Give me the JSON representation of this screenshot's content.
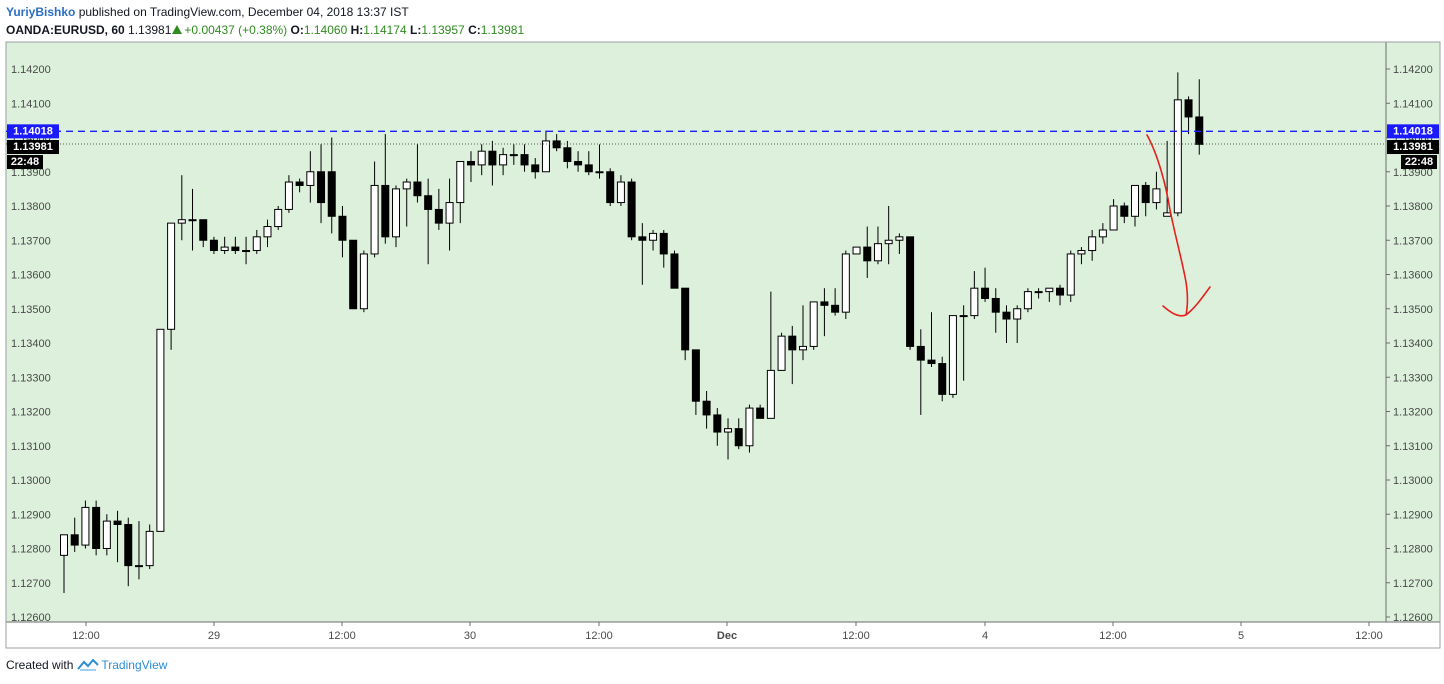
{
  "header": {
    "author": "YuriyBishko",
    "published_text": "published on TradingView.com, December 04, 2018 13:37 IST",
    "symbol": "OANDA:EURUSD, 60",
    "last": "1.13981",
    "change": "+0.00437 (+0.38%)",
    "o_label": "O:",
    "o_val": "1.14060",
    "h_label": "H:",
    "h_val": "1.14174",
    "l_label": "L:",
    "l_val": "1.13957",
    "c_label": "C:",
    "c_val": "1.13981"
  },
  "footer": {
    "created_with": "Created with",
    "brand": "TradingView"
  },
  "chart_data": {
    "type": "candlestick",
    "y_range": [
      1.1255,
      1.1425
    ],
    "y_ticks": [
      "1.12600",
      "1.12700",
      "1.12800",
      "1.12900",
      "1.13000",
      "1.13100",
      "1.13200",
      "1.13300",
      "1.13400",
      "1.13500",
      "1.13600",
      "1.13700",
      "1.13800",
      "1.13900",
      "1.14000",
      "1.14100",
      "1.14200"
    ],
    "x_ticks": [
      "12:00",
      "29",
      "12:00",
      "30",
      "12:00",
      "Dec",
      "12:00",
      "4",
      "12:00",
      "5",
      "12:00"
    ],
    "grid": false,
    "colors": {
      "background": "#dcf0dc",
      "up_body": "#ffffff",
      "down_body": "#000000",
      "wick": "#000000",
      "level_line": "#1a1aff",
      "annotation": "#e8201e"
    },
    "level_line": {
      "value": 1.14018,
      "label": "1.14018"
    },
    "price_line": {
      "value": 1.13981,
      "label": "1.13981",
      "countdown": "22:48"
    },
    "candles": [
      [
        1.1278,
        1.1284,
        1.1267,
        1.1284
      ],
      [
        1.1284,
        1.1289,
        1.1279,
        1.1281
      ],
      [
        1.1281,
        1.1294,
        1.128,
        1.1292
      ],
      [
        1.1292,
        1.1294,
        1.1278,
        1.128
      ],
      [
        1.128,
        1.129,
        1.1278,
        1.1288
      ],
      [
        1.1288,
        1.1291,
        1.1276,
        1.1287
      ],
      [
        1.1287,
        1.1289,
        1.1269,
        1.1275
      ],
      [
        1.1275,
        1.1288,
        1.1271,
        1.1275
      ],
      [
        1.1275,
        1.1287,
        1.1274,
        1.1285
      ],
      [
        1.1285,
        1.1344,
        1.1285,
        1.1344
      ],
      [
        1.1344,
        1.1375,
        1.1338,
        1.1375
      ],
      [
        1.1375,
        1.1389,
        1.137,
        1.1376
      ],
      [
        1.1376,
        1.1385,
        1.1367,
        1.1376
      ],
      [
        1.1376,
        1.1376,
        1.1368,
        1.137
      ],
      [
        1.137,
        1.1371,
        1.1366,
        1.1367
      ],
      [
        1.1367,
        1.1371,
        1.1366,
        1.1368
      ],
      [
        1.1368,
        1.1371,
        1.1366,
        1.1367
      ],
      [
        1.1367,
        1.1371,
        1.1363,
        1.1367
      ],
      [
        1.1367,
        1.1373,
        1.1366,
        1.1371
      ],
      [
        1.1371,
        1.1376,
        1.1368,
        1.1374
      ],
      [
        1.1374,
        1.138,
        1.1373,
        1.1379
      ],
      [
        1.1379,
        1.1389,
        1.1378,
        1.1387
      ],
      [
        1.1387,
        1.1388,
        1.1384,
        1.1386
      ],
      [
        1.1386,
        1.1396,
        1.1381,
        1.139
      ],
      [
        1.139,
        1.1398,
        1.1375,
        1.1381
      ],
      [
        1.139,
        1.14,
        1.1372,
        1.1377
      ],
      [
        1.1377,
        1.138,
        1.1365,
        1.137
      ],
      [
        1.137,
        1.137,
        1.135,
        1.135
      ],
      [
        1.135,
        1.1367,
        1.1349,
        1.1366
      ],
      [
        1.1366,
        1.1393,
        1.1365,
        1.1386
      ],
      [
        1.1386,
        1.1401,
        1.1369,
        1.1371
      ],
      [
        1.1371,
        1.1386,
        1.1368,
        1.1385
      ],
      [
        1.1385,
        1.1388,
        1.1374,
        1.1387
      ],
      [
        1.1387,
        1.1398,
        1.1381,
        1.1383
      ],
      [
        1.1383,
        1.1388,
        1.1363,
        1.1379
      ],
      [
        1.1379,
        1.1385,
        1.1373,
        1.1375
      ],
      [
        1.1375,
        1.1388,
        1.1367,
        1.1381
      ],
      [
        1.1381,
        1.1393,
        1.1375,
        1.1393
      ],
      [
        1.1393,
        1.1396,
        1.1387,
        1.1392
      ],
      [
        1.1392,
        1.1398,
        1.1389,
        1.1396
      ],
      [
        1.1396,
        1.1399,
        1.1386,
        1.1392
      ],
      [
        1.1392,
        1.1397,
        1.1389,
        1.1395
      ],
      [
        1.1395,
        1.1398,
        1.1392,
        1.1395
      ],
      [
        1.1395,
        1.1398,
        1.139,
        1.1392
      ],
      [
        1.1392,
        1.1394,
        1.1388,
        1.139
      ],
      [
        1.139,
        1.1402,
        1.139,
        1.1399
      ],
      [
        1.1399,
        1.1401,
        1.1396,
        1.1397
      ],
      [
        1.1397,
        1.1399,
        1.1391,
        1.1393
      ],
      [
        1.1393,
        1.1396,
        1.139,
        1.1392
      ],
      [
        1.1392,
        1.1396,
        1.1389,
        1.139
      ],
      [
        1.139,
        1.1398,
        1.1388,
        1.139
      ],
      [
        1.139,
        1.1391,
        1.138,
        1.1381
      ],
      [
        1.1381,
        1.1389,
        1.138,
        1.1387
      ],
      [
        1.1387,
        1.1388,
        1.137,
        1.1371
      ],
      [
        1.1371,
        1.1375,
        1.1357,
        1.137
      ],
      [
        1.137,
        1.1373,
        1.1367,
        1.1372
      ],
      [
        1.1372,
        1.1373,
        1.1362,
        1.1366
      ],
      [
        1.1366,
        1.1367,
        1.1356,
        1.1356
      ],
      [
        1.1356,
        1.1356,
        1.1335,
        1.1338
      ],
      [
        1.1338,
        1.1338,
        1.1319,
        1.1323
      ],
      [
        1.1323,
        1.1326,
        1.1315,
        1.1319
      ],
      [
        1.1319,
        1.1321,
        1.131,
        1.1314
      ],
      [
        1.1314,
        1.1318,
        1.1306,
        1.1315
      ],
      [
        1.1315,
        1.1318,
        1.1309,
        1.131
      ],
      [
        1.131,
        1.1322,
        1.1308,
        1.1321
      ],
      [
        1.1321,
        1.1322,
        1.1318,
        1.1318
      ],
      [
        1.1318,
        1.1355,
        1.1318,
        1.1332
      ],
      [
        1.1332,
        1.1343,
        1.1332,
        1.1342
      ],
      [
        1.1342,
        1.1345,
        1.1328,
        1.1338
      ],
      [
        1.1338,
        1.1351,
        1.1335,
        1.1339
      ],
      [
        1.1339,
        1.1352,
        1.1338,
        1.1352
      ],
      [
        1.1352,
        1.1356,
        1.1342,
        1.1351
      ],
      [
        1.1351,
        1.1356,
        1.1348,
        1.1349
      ],
      [
        1.1349,
        1.1367,
        1.1347,
        1.1366
      ],
      [
        1.1366,
        1.1368,
        1.1366,
        1.1368
      ],
      [
        1.1368,
        1.1374,
        1.1359,
        1.1364
      ],
      [
        1.1364,
        1.1374,
        1.1363,
        1.1369
      ],
      [
        1.1369,
        1.138,
        1.1363,
        1.137
      ],
      [
        1.137,
        1.1372,
        1.1366,
        1.1371
      ],
      [
        1.1371,
        1.1371,
        1.1338,
        1.1339
      ],
      [
        1.1339,
        1.1344,
        1.1319,
        1.1335
      ],
      [
        1.1335,
        1.1349,
        1.1333,
        1.1334
      ],
      [
        1.1334,
        1.1336,
        1.1323,
        1.1325
      ],
      [
        1.1325,
        1.1347,
        1.1324,
        1.1348
      ],
      [
        1.1348,
        1.1351,
        1.1329,
        1.1348
      ],
      [
        1.1348,
        1.1361,
        1.1347,
        1.1356
      ],
      [
        1.1356,
        1.1362,
        1.1352,
        1.1353
      ],
      [
        1.1353,
        1.1356,
        1.1343,
        1.1349
      ],
      [
        1.1349,
        1.1351,
        1.134,
        1.1347
      ],
      [
        1.1347,
        1.1351,
        1.134,
        1.135
      ],
      [
        1.135,
        1.1356,
        1.1349,
        1.1355
      ],
      [
        1.1355,
        1.1356,
        1.1353,
        1.1355
      ],
      [
        1.1355,
        1.1356,
        1.1352,
        1.1356
      ],
      [
        1.1356,
        1.1357,
        1.1351,
        1.1354
      ],
      [
        1.1354,
        1.1367,
        1.1352,
        1.1366
      ],
      [
        1.1366,
        1.1368,
        1.1363,
        1.1367
      ],
      [
        1.1367,
        1.1373,
        1.1364,
        1.1371
      ],
      [
        1.1371,
        1.1375,
        1.1369,
        1.1373
      ],
      [
        1.1373,
        1.1382,
        1.1373,
        1.138
      ],
      [
        1.138,
        1.1381,
        1.1375,
        1.1377
      ],
      [
        1.1377,
        1.1386,
        1.1374,
        1.1386
      ],
      [
        1.1386,
        1.1387,
        1.1377,
        1.1381
      ],
      [
        1.1381,
        1.139,
        1.1379,
        1.1385
      ],
      [
        1.1377,
        1.1399,
        1.1377,
        1.1378
      ],
      [
        1.1378,
        1.1419,
        1.1377,
        1.1411
      ],
      [
        1.1411,
        1.1412,
        1.1401,
        1.1406
      ],
      [
        1.1406,
        1.1417,
        1.1395,
        1.1398
      ]
    ],
    "annotation": "hand-drawn red downward arrow"
  }
}
